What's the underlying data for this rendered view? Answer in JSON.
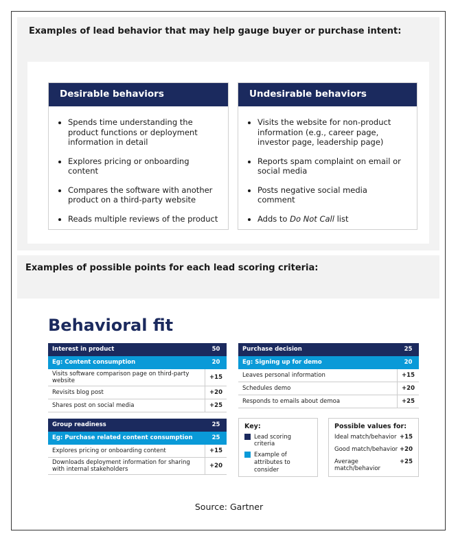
{
  "section1": {
    "heading": "Examples of lead behavior that may help gauge buyer or purchase intent:",
    "columns": [
      {
        "title": "Desirable behaviors",
        "items": [
          {
            "text": "Spends time understanding the product functions or deployment information in detail"
          },
          {
            "text": "Explores pricing or onboarding content"
          },
          {
            "text": "Compares the software with another product on a third-party website"
          },
          {
            "text": "Reads multiple reviews of the product"
          }
        ]
      },
      {
        "title": "Undesirable behaviors",
        "items": [
          {
            "text": "Visits the website for non-product information (e.g., career page, investor page, leadership page)"
          },
          {
            "text": "Reports spam complaint on email or social media"
          },
          {
            "text": "Posts negative social media comment"
          },
          {
            "before": "Adds to ",
            "emphasis": "Do Not Call",
            "after": " list"
          }
        ]
      }
    ]
  },
  "section2": {
    "heading": "Examples of possible points for each lead scoring criteria:",
    "title": "Behavioral fit",
    "tables": [
      {
        "header": [
          "Interest in product",
          "50"
        ],
        "example": [
          "Eg: Content consumption",
          "20"
        ],
        "rows": [
          [
            "Visits software comparison page on third-party website",
            "+15"
          ],
          [
            "Revisits blog post",
            "+20"
          ],
          [
            "Shares post on social media",
            "+25"
          ]
        ]
      },
      {
        "header": [
          "Purchase decision",
          "25"
        ],
        "example": [
          "Eg: Signing up for demo",
          "20"
        ],
        "rows": [
          [
            "Leaves personal information",
            "+15"
          ],
          [
            "Schedules demo",
            "+20"
          ],
          [
            "Responds to emails about demoa",
            "+25"
          ]
        ]
      },
      {
        "header": [
          "Group readiness",
          "25"
        ],
        "example": [
          "Eg: Purchase related content consumption",
          "25"
        ],
        "rows": [
          [
            "Explores pricing or onboarding content",
            "+15"
          ],
          [
            "Downloads deployment information for sharing with internal stakeholders",
            "+20"
          ]
        ]
      }
    ],
    "key": {
      "title": "Key:",
      "items": [
        "Lead scoring criteria",
        "Example of attributes to consider"
      ]
    },
    "possible_values": {
      "title": "Possible values for:",
      "rows": [
        [
          "Ideal match/behavior",
          "+15"
        ],
        [
          "Good match/behavior",
          "+20"
        ],
        [
          "Average match/behavior",
          "+25"
        ]
      ]
    }
  },
  "source": "Source: Gartner"
}
